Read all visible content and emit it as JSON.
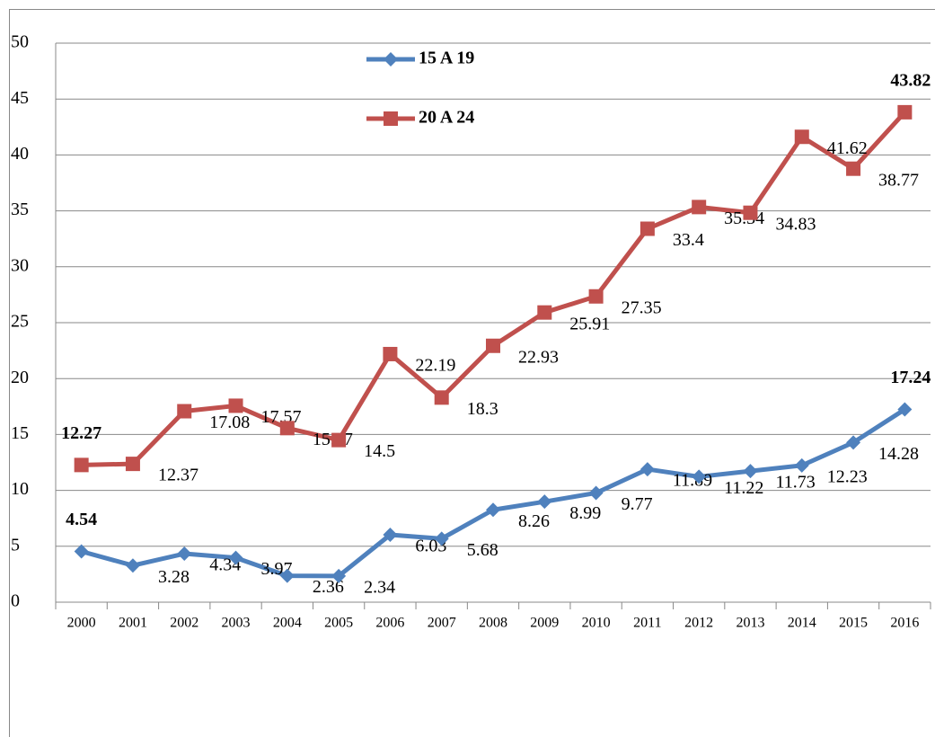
{
  "chart_data": {
    "type": "line",
    "categories": [
      "2000",
      "2001",
      "2002",
      "2003",
      "2004",
      "2005",
      "2006",
      "2007",
      "2008",
      "2009",
      "2010",
      "2011",
      "2012",
      "2013",
      "2014",
      "2015",
      "2016"
    ],
    "series": [
      {
        "name": "15 A 19",
        "color": "#4f81bd",
        "marker": "diamond",
        "values": [
          4.54,
          3.28,
          4.34,
          3.97,
          2.36,
          2.34,
          6.03,
          5.68,
          8.26,
          8.99,
          9.77,
          11.89,
          11.22,
          11.73,
          12.23,
          14.28,
          17.24
        ]
      },
      {
        "name": "20 A 24",
        "color": "#c0504d",
        "marker": "square",
        "values": [
          12.27,
          12.37,
          17.08,
          17.57,
          15.57,
          14.5,
          22.19,
          18.3,
          22.93,
          25.91,
          27.35,
          33.4,
          35.34,
          34.83,
          41.62,
          38.77,
          43.82
        ]
      }
    ],
    "ylim": [
      0,
      50
    ],
    "yticks": [
      0,
      5,
      10,
      15,
      20,
      25,
      30,
      35,
      40,
      45,
      50
    ],
    "grid": true
  }
}
